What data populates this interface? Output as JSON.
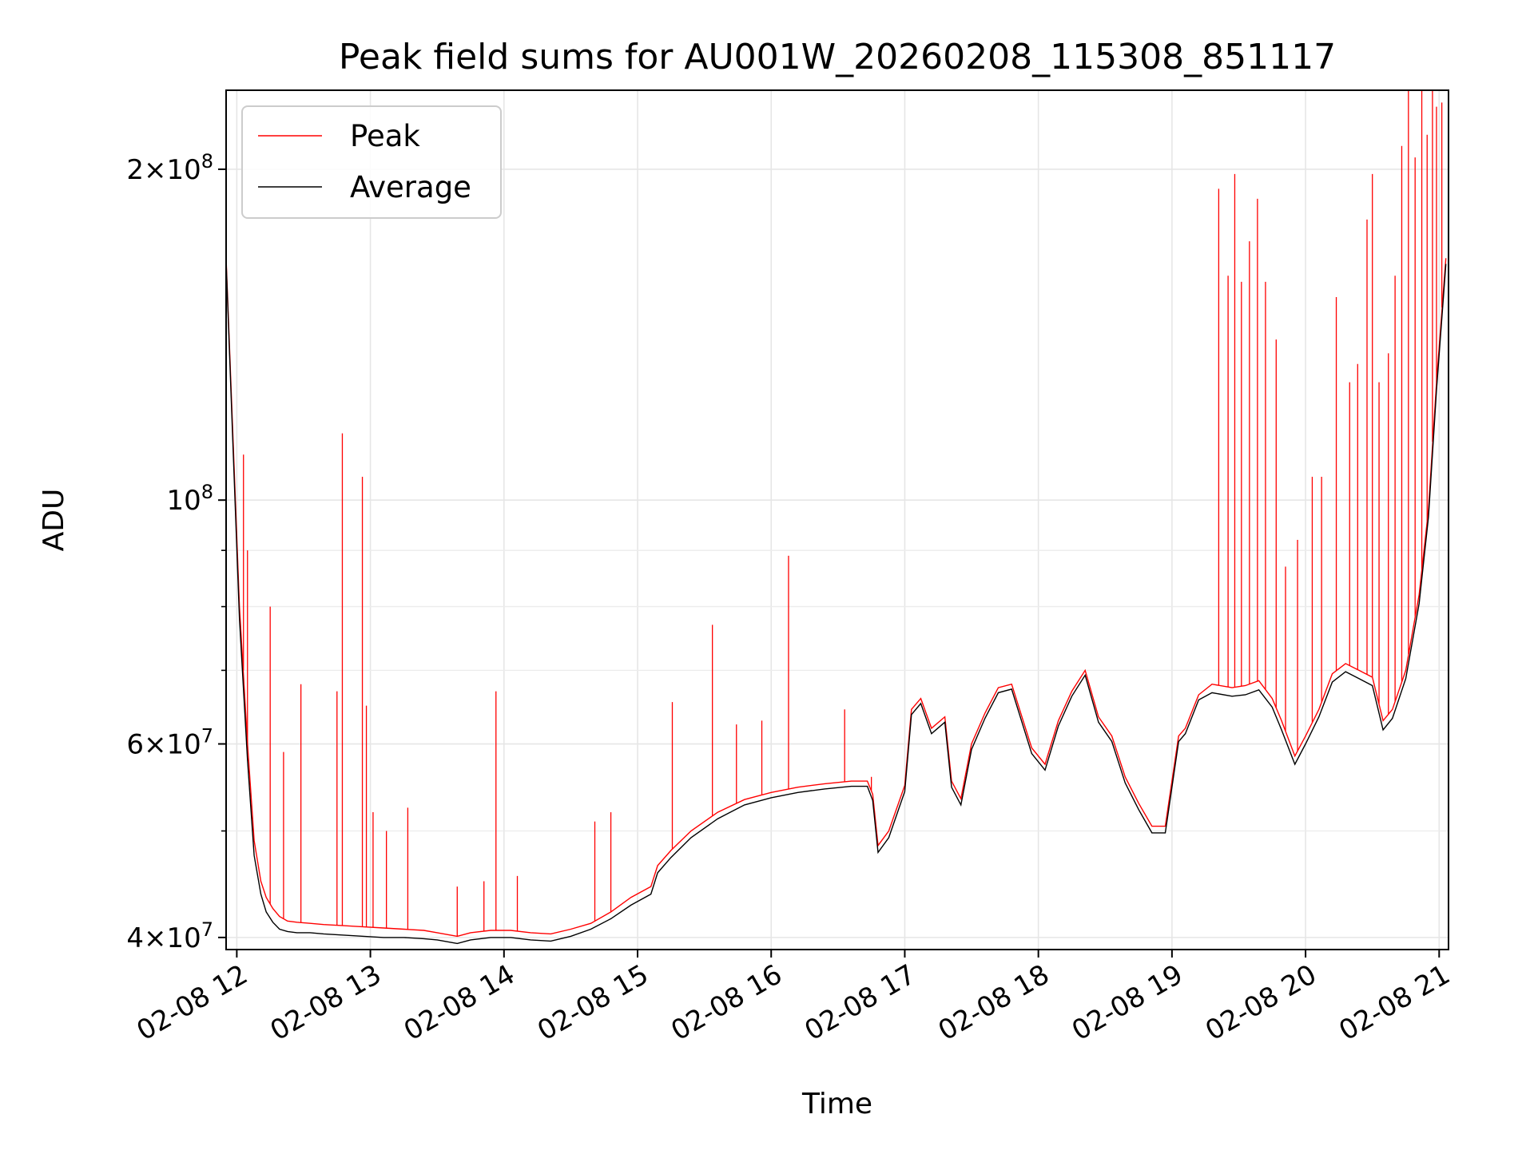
{
  "chart_data": {
    "type": "line",
    "title": "Peak field sums for AU001W_20260208_115308_851117",
    "xlabel": "Time",
    "ylabel": "ADU",
    "yscale": "log",
    "xlim": [
      11.92,
      21.07
    ],
    "ylim": [
      39000000,
      236000000
    ],
    "grid": true,
    "legend_position": "top-left",
    "x_ticks": [
      {
        "value": 12,
        "label": "02-08 12"
      },
      {
        "value": 13,
        "label": "02-08 13"
      },
      {
        "value": 14,
        "label": "02-08 14"
      },
      {
        "value": 15,
        "label": "02-08 15"
      },
      {
        "value": 16,
        "label": "02-08 16"
      },
      {
        "value": 17,
        "label": "02-08 17"
      },
      {
        "value": 18,
        "label": "02-08 18"
      },
      {
        "value": 19,
        "label": "02-08 19"
      },
      {
        "value": 20,
        "label": "02-08 20"
      },
      {
        "value": 21,
        "label": "02-08 21"
      }
    ],
    "y_ticks": [
      {
        "value": 40000000,
        "mantissa": "4",
        "exp": "7"
      },
      {
        "value": 60000000,
        "mantissa": "6",
        "exp": "7"
      },
      {
        "value": 100000000,
        "mantissa": "",
        "exp": "8"
      },
      {
        "value": 200000000,
        "mantissa": "2",
        "exp": "8"
      }
    ],
    "y_minor_ticks": [
      50000000,
      70000000,
      80000000,
      90000000
    ],
    "series": [
      {
        "name": "Peak",
        "color": "#ff0000",
        "x": [
          11.92,
          11.97,
          12.02,
          12.08,
          12.13,
          12.18,
          12.22,
          12.27,
          12.32,
          12.38,
          12.45,
          12.55,
          12.65,
          12.8,
          12.95,
          13.1,
          13.25,
          13.4,
          13.5,
          13.6,
          13.65,
          13.75,
          13.9,
          14.05,
          14.2,
          14.35,
          14.5,
          14.65,
          14.8,
          14.95,
          15.1,
          15.15,
          15.25,
          15.4,
          15.6,
          15.8,
          16.0,
          16.2,
          16.4,
          16.6,
          16.72,
          16.76,
          16.8,
          16.88,
          17.0,
          17.05,
          17.12,
          17.2,
          17.3,
          17.35,
          17.42,
          17.5,
          17.6,
          17.7,
          17.8,
          17.95,
          18.05,
          18.15,
          18.25,
          18.35,
          18.45,
          18.55,
          18.65,
          18.75,
          18.85,
          18.95,
          19.05,
          19.1,
          19.2,
          19.3,
          19.45,
          19.55,
          19.65,
          19.75,
          19.82,
          19.92,
          20.0,
          20.1,
          20.2,
          20.3,
          20.4,
          20.5,
          20.58,
          20.65,
          20.75,
          20.85,
          20.92,
          20.98,
          21.05
        ],
        "y": [
          166000000,
          115000000,
          80000000,
          60000000,
          49000000,
          45000000,
          43500000,
          42500000,
          41800000,
          41400000,
          41300000,
          41200000,
          41100000,
          41000000,
          40900000,
          40800000,
          40700000,
          40600000,
          40400000,
          40200000,
          40100000,
          40400000,
          40600000,
          40600000,
          40400000,
          40300000,
          40700000,
          41200000,
          42200000,
          43500000,
          44500000,
          46500000,
          48000000,
          50000000,
          52000000,
          53400000,
          54200000,
          54800000,
          55200000,
          55500000,
          55500000,
          54000000,
          48500000,
          50000000,
          55000000,
          64500000,
          66000000,
          62000000,
          63500000,
          55500000,
          53500000,
          60000000,
          64000000,
          67500000,
          68000000,
          59500000,
          57500000,
          63000000,
          67000000,
          70000000,
          63500000,
          61000000,
          56000000,
          53000000,
          50500000,
          50500000,
          61000000,
          62000000,
          66500000,
          68000000,
          67500000,
          67800000,
          68500000,
          66000000,
          63000000,
          58500000,
          61000000,
          64500000,
          69500000,
          71000000,
          70000000,
          69000000,
          63000000,
          64500000,
          70000000,
          82000000,
          98000000,
          128000000,
          166000000
        ],
        "spikes": [
          {
            "x": 12.05,
            "y": 110000000
          },
          {
            "x": 12.08,
            "y": 90000000
          },
          {
            "x": 12.25,
            "y": 80000000
          },
          {
            "x": 12.35,
            "y": 59000000
          },
          {
            "x": 12.48,
            "y": 68000000
          },
          {
            "x": 12.75,
            "y": 67000000
          },
          {
            "x": 12.79,
            "y": 115000000
          },
          {
            "x": 12.94,
            "y": 105000000
          },
          {
            "x": 12.97,
            "y": 65000000
          },
          {
            "x": 13.02,
            "y": 52000000
          },
          {
            "x": 13.12,
            "y": 50000000
          },
          {
            "x": 13.28,
            "y": 52500000
          },
          {
            "x": 13.65,
            "y": 44500000
          },
          {
            "x": 13.85,
            "y": 45000000
          },
          {
            "x": 13.94,
            "y": 67000000
          },
          {
            "x": 14.1,
            "y": 45500000
          },
          {
            "x": 14.68,
            "y": 51000000
          },
          {
            "x": 14.8,
            "y": 52000000
          },
          {
            "x": 15.26,
            "y": 65500000
          },
          {
            "x": 15.56,
            "y": 77000000
          },
          {
            "x": 15.74,
            "y": 62500000
          },
          {
            "x": 15.93,
            "y": 63000000
          },
          {
            "x": 16.13,
            "y": 89000000
          },
          {
            "x": 16.55,
            "y": 64500000
          },
          {
            "x": 16.75,
            "y": 56000000
          },
          {
            "x": 19.35,
            "y": 192000000
          },
          {
            "x": 19.42,
            "y": 160000000
          },
          {
            "x": 19.47,
            "y": 198000000
          },
          {
            "x": 19.52,
            "y": 158000000
          },
          {
            "x": 19.58,
            "y": 172000000
          },
          {
            "x": 19.64,
            "y": 188000000
          },
          {
            "x": 19.7,
            "y": 158000000
          },
          {
            "x": 19.78,
            "y": 140000000
          },
          {
            "x": 19.85,
            "y": 87000000
          },
          {
            "x": 19.94,
            "y": 92000000
          },
          {
            "x": 20.05,
            "y": 105000000
          },
          {
            "x": 20.12,
            "y": 105000000
          },
          {
            "x": 20.23,
            "y": 153000000
          },
          {
            "x": 20.33,
            "y": 128000000
          },
          {
            "x": 20.39,
            "y": 133000000
          },
          {
            "x": 20.46,
            "y": 180000000
          },
          {
            "x": 20.5,
            "y": 198000000
          },
          {
            "x": 20.55,
            "y": 128000000
          },
          {
            "x": 20.62,
            "y": 136000000
          },
          {
            "x": 20.67,
            "y": 160000000
          },
          {
            "x": 20.72,
            "y": 210000000
          },
          {
            "x": 20.77,
            "y": 236000000
          },
          {
            "x": 20.82,
            "y": 205000000
          },
          {
            "x": 20.87,
            "y": 236000000
          },
          {
            "x": 20.91,
            "y": 215000000
          },
          {
            "x": 20.95,
            "y": 236000000
          },
          {
            "x": 20.98,
            "y": 228000000
          },
          {
            "x": 21.02,
            "y": 230000000
          }
        ]
      },
      {
        "name": "Average",
        "color": "#000000",
        "x": [
          11.92,
          11.97,
          12.02,
          12.08,
          12.13,
          12.18,
          12.22,
          12.27,
          12.32,
          12.38,
          12.45,
          12.55,
          12.65,
          12.8,
          12.95,
          13.1,
          13.25,
          13.4,
          13.5,
          13.6,
          13.65,
          13.75,
          13.9,
          14.05,
          14.2,
          14.35,
          14.5,
          14.65,
          14.8,
          14.95,
          15.1,
          15.15,
          15.25,
          15.4,
          15.6,
          15.8,
          16.0,
          16.2,
          16.4,
          16.6,
          16.72,
          16.76,
          16.8,
          16.88,
          17.0,
          17.05,
          17.12,
          17.2,
          17.3,
          17.35,
          17.42,
          17.5,
          17.6,
          17.7,
          17.8,
          17.95,
          18.05,
          18.15,
          18.25,
          18.35,
          18.45,
          18.55,
          18.65,
          18.75,
          18.85,
          18.95,
          19.05,
          19.1,
          19.2,
          19.3,
          19.45,
          19.55,
          19.65,
          19.75,
          19.82,
          19.92,
          20.0,
          20.1,
          20.2,
          20.3,
          20.4,
          20.5,
          20.58,
          20.65,
          20.75,
          20.85,
          20.92,
          20.98,
          21.05
        ],
        "y": [
          165000000,
          113000000,
          78000000,
          58000000,
          47500000,
          43800000,
          42200000,
          41300000,
          40700000,
          40500000,
          40400000,
          40400000,
          40300000,
          40200000,
          40100000,
          40000000,
          40000000,
          39900000,
          39800000,
          39600000,
          39500000,
          39800000,
          40000000,
          40000000,
          39800000,
          39700000,
          40100000,
          40700000,
          41600000,
          42800000,
          43800000,
          45800000,
          47300000,
          49300000,
          51300000,
          52800000,
          53600000,
          54200000,
          54600000,
          54900000,
          54900000,
          53300000,
          47800000,
          49300000,
          54300000,
          63800000,
          65300000,
          61300000,
          62800000,
          54800000,
          52800000,
          59300000,
          63300000,
          66800000,
          67300000,
          58800000,
          56800000,
          62300000,
          66300000,
          69300000,
          62800000,
          60300000,
          55300000,
          52300000,
          49800000,
          49800000,
          60300000,
          61300000,
          65800000,
          66800000,
          66300000,
          66500000,
          67200000,
          64800000,
          61800000,
          57500000,
          60000000,
          63500000,
          68300000,
          69800000,
          68800000,
          67800000,
          61800000,
          63300000,
          68800000,
          80500000,
          96500000,
          126000000,
          164000000
        ]
      }
    ]
  }
}
